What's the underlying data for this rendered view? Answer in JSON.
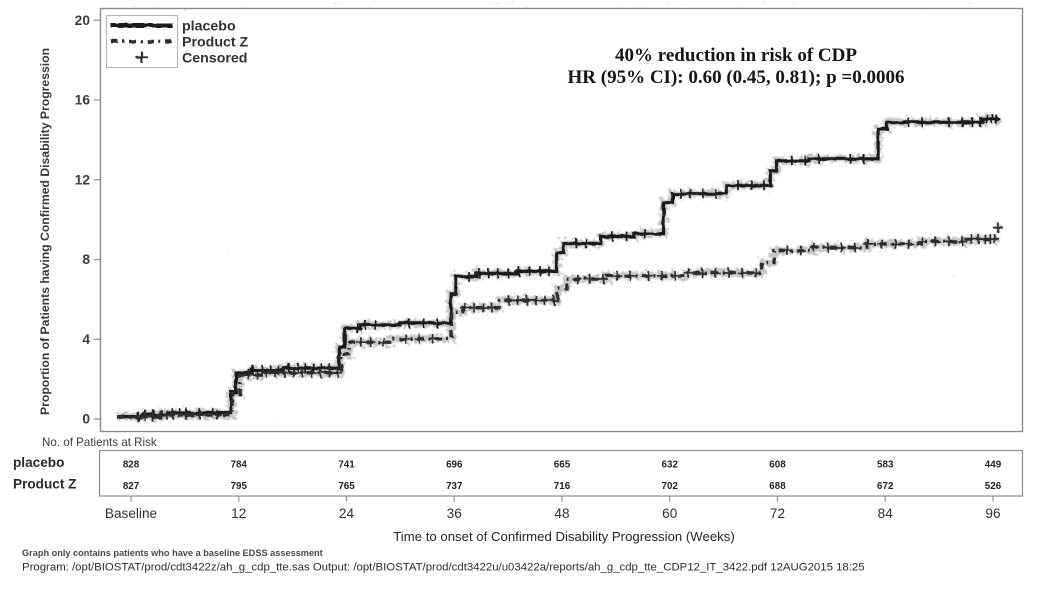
{
  "colors": {
    "placebo_line": "#1c1c1c",
    "productz_line": "#2d2d2d",
    "axis_line": "#8f8f8f",
    "tick": "#999999",
    "tick_label": "#3c3c3c",
    "text_dark": "#222222",
    "text_gray": "#3a3a3a",
    "annotation": "#141414",
    "legend_border": "#b5b5b5"
  },
  "annotation": {
    "line1": "40% reduction in risk of CDP",
    "line2": "HR (95% CI): 0.60 (0.45, 0.81); p =0.0006"
  },
  "legend": {
    "items": [
      {
        "label": "placebo",
        "swatch": "solid-line"
      },
      {
        "label": "Product Z",
        "swatch": "dash-dot-line"
      },
      {
        "label": "Censored",
        "swatch": "plus"
      }
    ]
  },
  "risk_table": {
    "title": "No. of Patients at Risk",
    "rows": [
      {
        "label": "placebo",
        "values": [
          "828",
          "784",
          "741",
          "696",
          "665",
          "632",
          "608",
          "583",
          "449"
        ]
      },
      {
        "label": "Product Z",
        "values": [
          "827",
          "795",
          "765",
          "737",
          "716",
          "702",
          "688",
          "672",
          "526"
        ]
      }
    ]
  },
  "footnotes": {
    "line1": "Graph only contains patients who have a baseline EDSS assessment",
    "line2": "Program: /opt/BIOSTAT/prod/cdt3422z/ah_g_cdp_tte.sas Output: /opt/BIOSTAT/prod/cdt3422u/u03422a/reports/ah_g_cdp_tte_CDP12_IT_3422.pdf 12AUG2015 18:25"
  },
  "chart_data": {
    "type": "line",
    "subtype": "kaplan-meier-step",
    "title": "",
    "xlabel": "Time to onset of Confirmed Disability Progression (Weeks)",
    "ylabel": "Proportion of Patients having Confirmed Disability Progression",
    "xlim": [
      -3.4,
      99.3
    ],
    "ylim": [
      0,
      21.2
    ],
    "grid": false,
    "legend_position": "top-left-inside",
    "x_ticks": [
      {
        "week": 0,
        "label": "Baseline"
      },
      {
        "week": 12,
        "label": "12"
      },
      {
        "week": 24,
        "label": "24"
      },
      {
        "week": 36,
        "label": "36"
      },
      {
        "week": 48,
        "label": "48"
      },
      {
        "week": 60,
        "label": "60"
      },
      {
        "week": 72,
        "label": "72"
      },
      {
        "week": 84,
        "label": "84"
      },
      {
        "week": 96,
        "label": "96"
      }
    ],
    "y_ticks": [
      0,
      4,
      8,
      12,
      16,
      20
    ],
    "series": [
      {
        "name": "placebo",
        "style": "solid",
        "steps": [
          [
            -1.55,
            0.12
          ],
          [
            1.5,
            0.22
          ],
          [
            4.0,
            0.3
          ],
          [
            11.15,
            1.35
          ],
          [
            11.7,
            2.3
          ],
          [
            13.5,
            2.45
          ],
          [
            17.0,
            2.55
          ],
          [
            23.2,
            3.6
          ],
          [
            23.8,
            4.55
          ],
          [
            25.5,
            4.72
          ],
          [
            30.0,
            4.8
          ],
          [
            35.6,
            6.3
          ],
          [
            36.2,
            7.15
          ],
          [
            38.5,
            7.3
          ],
          [
            43.0,
            7.4
          ],
          [
            47.4,
            8.35
          ],
          [
            48.2,
            8.8
          ],
          [
            52.3,
            9.15
          ],
          [
            56.0,
            9.3
          ],
          [
            59.3,
            10.85
          ],
          [
            60.3,
            11.3
          ],
          [
            66.3,
            11.72
          ],
          [
            71.2,
            12.45
          ],
          [
            71.9,
            12.95
          ],
          [
            75.5,
            13.05
          ],
          [
            83.2,
            14.55
          ],
          [
            84.2,
            14.88
          ],
          [
            94.8,
            15.05
          ],
          [
            96.4,
            15.18
          ]
        ],
        "censored_weeks": [
          0.8,
          1.6,
          2.5,
          3.4,
          4.6,
          5.4,
          6.2,
          7.6,
          9.1,
          13.6,
          14.6,
          15.5,
          16.4,
          17.6,
          18.6,
          19.4,
          20.3,
          21.2,
          22.1,
          25.2,
          26.1,
          27.2,
          31.0,
          32.6,
          34.1,
          37.6,
          38.8,
          39.8,
          40.9,
          42.0,
          43.2,
          44.4,
          45.6,
          46.6,
          49.6,
          50.7,
          53.6,
          55.2,
          57.2,
          61.2,
          62.3,
          63.7,
          65.1,
          67.6,
          69.1,
          70.5,
          73.6,
          75.1,
          76.6,
          80.1,
          81.6,
          86.6,
          88.1,
          91.1,
          92.6,
          93.7,
          94.6,
          95.3,
          95.9,
          96.3
        ]
      },
      {
        "name": "Product Z",
        "style": "dash-dot",
        "steps": [
          [
            -1.55,
            0.1
          ],
          [
            3.0,
            0.2
          ],
          [
            11.3,
            1.25
          ],
          [
            12.1,
            2.2
          ],
          [
            14.5,
            2.32
          ],
          [
            23.4,
            3.25
          ],
          [
            24.3,
            3.85
          ],
          [
            29.0,
            4.02
          ],
          [
            35.7,
            5.35
          ],
          [
            37.0,
            5.58
          ],
          [
            41.0,
            5.95
          ],
          [
            47.5,
            6.55
          ],
          [
            48.5,
            7.02
          ],
          [
            53.0,
            7.18
          ],
          [
            62.0,
            7.32
          ],
          [
            70.3,
            7.85
          ],
          [
            71.6,
            8.45
          ],
          [
            76.0,
            8.6
          ],
          [
            82.0,
            8.78
          ],
          [
            88.0,
            8.9
          ],
          [
            93.0,
            9.02
          ],
          [
            96.4,
            9.12
          ]
        ],
        "censored_weeks": [
          0.7,
          1.6,
          2.4,
          3.2,
          4.0,
          4.7,
          6.1,
          7.7,
          9.6,
          13.1,
          14.1,
          15.1,
          16.1,
          17.1,
          18.1,
          19.1,
          20.1,
          21.1,
          22.1,
          23.0,
          25.6,
          26.7,
          28.1,
          30.6,
          32.1,
          33.6,
          37.2,
          38.2,
          39.2,
          40.2,
          42.1,
          43.1,
          44.1,
          45.1,
          46.1,
          47.1,
          49.7,
          51.1,
          52.6,
          54.1,
          55.6,
          57.6,
          59.1,
          60.6,
          62.1,
          63.6,
          65.1,
          66.6,
          68.1,
          69.6,
          73.1,
          74.6,
          76.1,
          77.6,
          79.1,
          80.6,
          82.1,
          83.6,
          85.1,
          86.6,
          88.1,
          89.6,
          91.1,
          92.6,
          93.6,
          94.4,
          95.1,
          95.7,
          96.2
        ],
        "final_censor": [
          96.55,
          9.6
        ]
      }
    ],
    "risk_axis_weeks": [
      0,
      12,
      24,
      36,
      48,
      60,
      72,
      84,
      96
    ]
  }
}
